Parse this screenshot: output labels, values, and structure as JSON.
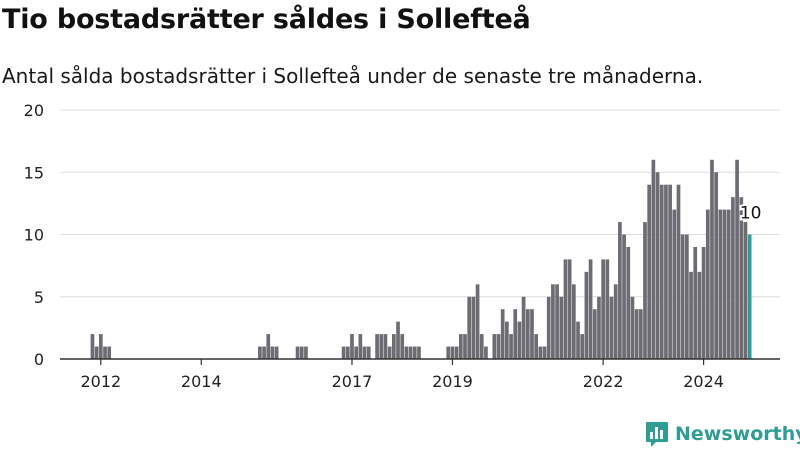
{
  "title": "Tio bostadsrätter såldes i Sollefteå",
  "subtitle": "Antal sålda bostadsrätter i Sollefteå under de senaste tre månaderna.",
  "brand": {
    "name": "Newsworthy"
  },
  "colors": {
    "bar": "#6d6c73",
    "highlight": "#2f9d93",
    "grid": "#dddddd",
    "axis": "#333333",
    "text": "#222222"
  },
  "chart_data": {
    "type": "bar",
    "title": "Tio bostadsrätter såldes i Sollefteå",
    "subtitle": "Antal sålda bostadsrätter i Sollefteå under de senaste tre månaderna.",
    "x_start": "2011-11",
    "frequency": "monthly",
    "x_ticks": [
      {
        "label": "2012",
        "date": "2012-01"
      },
      {
        "label": "2014",
        "date": "2014-01"
      },
      {
        "label": "2017",
        "date": "2017-01"
      },
      {
        "label": "2019",
        "date": "2019-01"
      },
      {
        "label": "2022",
        "date": "2022-01"
      },
      {
        "label": "2024",
        "date": "2024-01"
      }
    ],
    "ylim": [
      0,
      20
    ],
    "yticks": [
      0,
      5,
      10,
      15,
      20
    ],
    "grid": true,
    "highlight_last": true,
    "last_label": "10",
    "values": [
      2,
      1,
      2,
      1,
      1,
      0,
      0,
      0,
      0,
      0,
      0,
      0,
      0,
      0,
      0,
      0,
      0,
      0,
      0,
      0,
      0,
      0,
      0,
      0,
      0,
      0,
      0,
      0,
      0,
      0,
      0,
      0,
      0,
      0,
      0,
      0,
      0,
      0,
      0,
      0,
      1,
      1,
      2,
      1,
      1,
      0,
      0,
      0,
      0,
      1,
      1,
      1,
      0,
      0,
      0,
      0,
      0,
      0,
      0,
      0,
      1,
      1,
      2,
      1,
      2,
      1,
      1,
      0,
      2,
      2,
      2,
      1,
      2,
      3,
      2,
      1,
      1,
      1,
      1,
      0,
      0,
      0,
      0,
      0,
      0,
      1,
      1,
      1,
      2,
      2,
      5,
      5,
      6,
      2,
      1,
      0,
      2,
      2,
      4,
      3,
      2,
      4,
      3,
      5,
      4,
      4,
      2,
      1,
      1,
      5,
      6,
      6,
      5,
      8,
      8,
      6,
      3,
      2,
      7,
      8,
      4,
      5,
      8,
      8,
      5,
      6,
      11,
      10,
      9,
      5,
      4,
      4,
      11,
      14,
      16,
      15,
      14,
      14,
      14,
      12,
      14,
      10,
      10,
      7,
      9,
      7,
      9,
      12,
      16,
      15,
      12,
      12,
      12,
      13,
      16,
      13,
      11,
      10
    ]
  }
}
